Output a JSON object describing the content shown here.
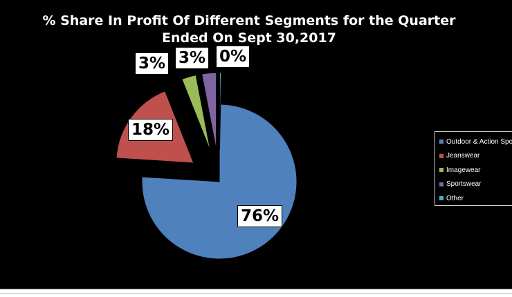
{
  "chart_data": {
    "type": "pie",
    "title": "% Share In Profit Of Different Segments for the Quarter Ended On Sept 30,2017",
    "categories": [
      "Outdoor & Action Sports",
      "Jeanswear",
      "Imagewear",
      "Sportswear",
      "Other"
    ],
    "values": [
      76,
      18,
      3,
      3,
      0
    ],
    "data_labels": [
      "76%",
      "18%",
      "3%",
      "3%",
      "0%"
    ],
    "colors": [
      "#4F81BD",
      "#C0504D",
      "#9BBB59",
      "#8064A2",
      "#4BACC6"
    ],
    "exploded": [
      false,
      true,
      true,
      true,
      true
    ],
    "legend_position": "right",
    "background": "#000000"
  },
  "legend": {
    "items": [
      "Outdoor & Action Sports",
      "Jeanswear",
      "Imagewear",
      "Sportswear",
      "Other"
    ]
  }
}
